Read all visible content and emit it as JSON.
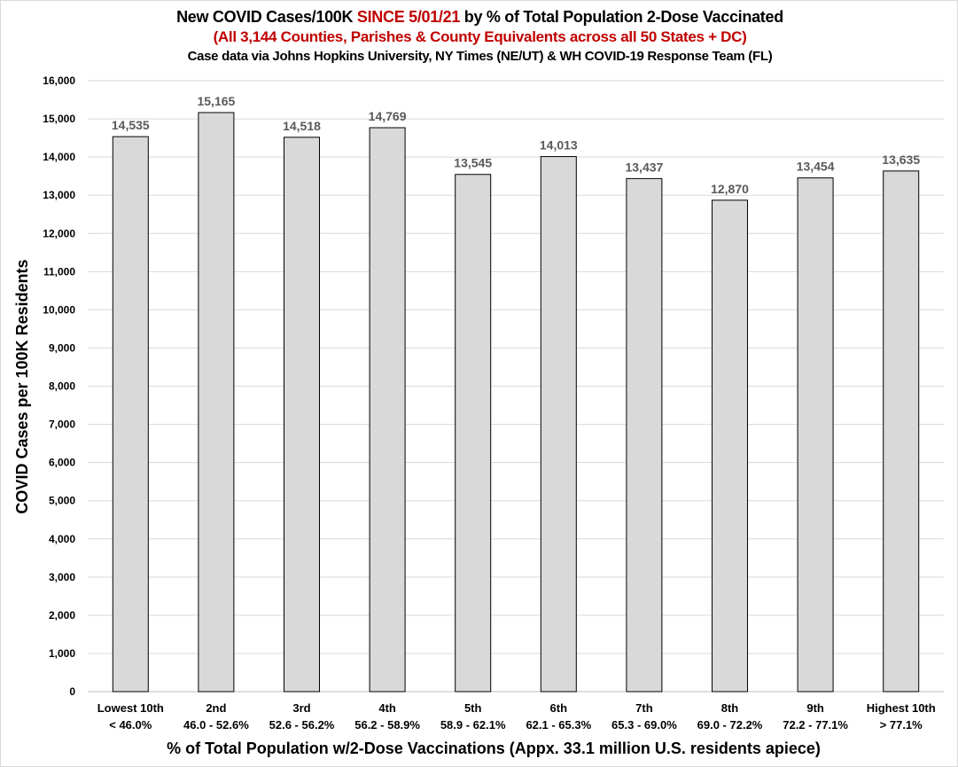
{
  "chart_data": {
    "type": "bar",
    "title": "New COVID Cases/100K SINCE 5/01/21 by % of Total Population 2-Dose Vaccinated",
    "title_parts": [
      "New COVID Cases/100K ",
      "SINCE 5/01/21",
      " by % of Total Population 2-Dose Vaccinated"
    ],
    "subtitle": "(All 3,144 Counties, Parishes & County Equivalents across all 50 States + DC)",
    "subtitle2": "Case data via Johns Hopkins University, NY Times (NE/UT) & WH COVID-19 Response Team (FL)",
    "xlabel": "% of Total Population w/2-Dose Vaccinations (Appx. 33.1 million U.S. residents apiece)",
    "ylabel": "COVID Cases per 100K Residents",
    "categories": [
      "Lowest 10th",
      "2nd",
      "3rd",
      "4th",
      "5th",
      "6th",
      "7th",
      "8th",
      "9th",
      "Highest 10th"
    ],
    "category_ranges": [
      "< 46.0%",
      "46.0 - 52.6%",
      "52.6 - 56.2%",
      "56.2 - 58.9%",
      "58.9 - 62.1%",
      "62.1 - 65.3%",
      "65.3 - 69.0%",
      "69.0 - 72.2%",
      "72.2 - 77.1%",
      "> 77.1%"
    ],
    "values": [
      14535,
      15165,
      14518,
      14769,
      13545,
      14013,
      13437,
      12870,
      13454,
      13635
    ],
    "data_labels": [
      "14,535",
      "15,165",
      "14,518",
      "14,769",
      "13,545",
      "14,013",
      "13,437",
      "12,870",
      "13,454",
      "13,635"
    ],
    "ylim": [
      0,
      16000
    ],
    "yticks": [
      "0",
      "1,000",
      "2,000",
      "3,000",
      "4,000",
      "5,000",
      "6,000",
      "7,000",
      "8,000",
      "9,000",
      "10,000",
      "11,000",
      "12,000",
      "13,000",
      "14,000",
      "15,000",
      "16,000"
    ],
    "grid": true,
    "legend": "none",
    "colors": {
      "bar_fill": "#d9d9d9",
      "bar_stroke": "#000000",
      "highlight": "#c00000",
      "data_label": "#595959"
    }
  }
}
